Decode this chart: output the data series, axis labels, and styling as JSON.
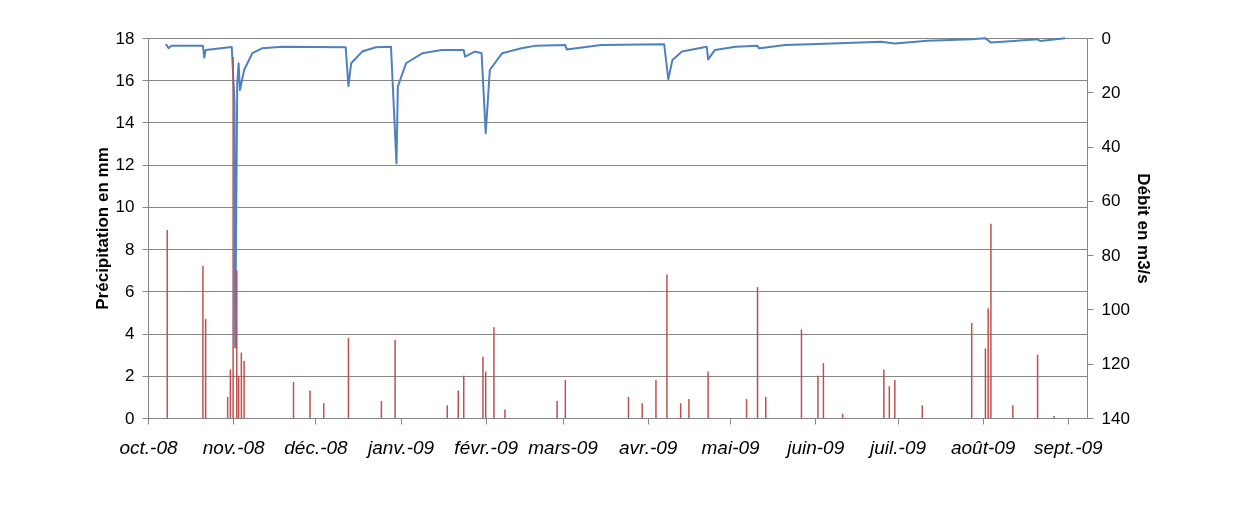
{
  "chart_data": {
    "type": "bar",
    "ylabel": "Précipitation en mm",
    "y2label": "Débit en m3/s",
    "xlim": [
      "2008-10-01",
      "2009-09-08"
    ],
    "xticks": [
      {
        "value": "2008-10-01",
        "label": "oct.-08"
      },
      {
        "value": "2008-11-01",
        "label": "nov.-08"
      },
      {
        "value": "2008-12-01",
        "label": "déc.-08"
      },
      {
        "value": "2009-01-01",
        "label": "janv.-09"
      },
      {
        "value": "2009-02-01",
        "label": "févr.-09"
      },
      {
        "value": "2009-03-01",
        "label": "mars-09"
      },
      {
        "value": "2009-04-01",
        "label": "avr.-09"
      },
      {
        "value": "2009-05-01",
        "label": "mai-09"
      },
      {
        "value": "2009-06-01",
        "label": "juin-09"
      },
      {
        "value": "2009-07-01",
        "label": "juil.-09"
      },
      {
        "value": "2009-08-01",
        "label": "août-09"
      },
      {
        "value": "2009-09-01",
        "label": "sept.-09"
      }
    ],
    "ylim": [
      0,
      18
    ],
    "yticks": [
      0,
      2,
      4,
      6,
      8,
      10,
      12,
      14,
      16,
      18
    ],
    "y2lim": [
      140,
      0
    ],
    "y2ticks": [
      0,
      20,
      40,
      60,
      80,
      100,
      120,
      140
    ],
    "grid": "y",
    "series": [
      {
        "color": "#c0504d",
        "x": [
          "2008-10-08",
          "2008-10-21",
          "2008-10-22",
          "2008-10-30",
          "2008-10-31",
          "2008-11-01",
          "2008-11-02T08:00",
          "2008-11-03",
          "2008-11-04",
          "2008-11-05",
          "2008-11-23",
          "2008-11-29",
          "2008-12-04",
          "2008-12-13",
          "2008-12-25",
          "2008-12-30",
          "2009-01-18",
          "2009-01-22",
          "2009-01-24",
          "2009-01-31",
          "2009-02-01",
          "2009-02-04",
          "2009-02-08",
          "2009-02-27",
          "2009-03-02",
          "2009-03-25",
          "2009-03-30",
          "2009-04-04",
          "2009-04-08",
          "2009-04-13",
          "2009-04-16",
          "2009-04-23",
          "2009-05-07",
          "2009-05-11",
          "2009-05-14",
          "2009-05-27",
          "2009-06-02",
          "2009-06-04",
          "2009-06-11",
          "2009-06-26",
          "2009-06-28",
          "2009-06-30",
          "2009-07-10",
          "2009-07-28",
          "2009-08-02",
          "2009-08-03",
          "2009-08-04",
          "2009-08-12",
          "2009-08-21",
          "2009-08-27"
        ],
        "values": [
          8.9,
          7.2,
          4.7,
          1.0,
          2.3,
          17.1,
          7.0,
          2.0,
          3.1,
          2.7,
          1.7,
          1.3,
          0.7,
          3.8,
          0.8,
          3.7,
          0.6,
          1.3,
          2.0,
          2.9,
          2.2,
          4.3,
          0.4,
          0.8,
          1.8,
          1.0,
          0.7,
          1.8,
          6.8,
          0.7,
          0.9,
          2.2,
          0.9,
          6.2,
          1.0,
          4.2,
          2.0,
          2.6,
          0.2,
          2.3,
          1.5,
          1.8,
          0.6,
          4.5,
          3.3,
          5.2,
          9.2,
          0.6,
          3.0,
          0.1
        ]
      },
      {
        "type": "line",
        "axis": "y2",
        "color": "#4f81bd",
        "x": [
          "2008-10-07T12:00",
          "2008-10-08T12:00",
          "2008-10-09T12:00",
          "2008-10-21T00:00",
          "2008-10-21T12:00",
          "2008-10-22T00:00",
          "2008-10-31T12:00",
          "2008-11-01T12:00",
          "2008-11-01T18:00",
          "2008-11-02T12:00",
          "2008-11-03T00:00",
          "2008-11-03T12:00",
          "2008-11-05T00:00",
          "2008-11-08T00:00",
          "2008-11-11T12:00",
          "2008-11-19T00:00",
          "2008-12-12T00:00",
          "2008-12-13T00:00",
          "2008-12-14T00:00",
          "2008-12-18T00:00",
          "2008-12-23T00:00",
          "2008-12-28T12:00",
          "2008-12-30T12:00",
          "2008-12-31T00:00",
          "2009-01-03T00:00",
          "2009-01-09T00:00",
          "2009-01-16T00:00",
          "2009-01-24T00:00",
          "2009-01-24T12:00",
          "2009-01-28T00:00",
          "2009-01-30T12:00",
          "2009-02-01T00:00",
          "2009-02-02T12:00",
          "2009-02-07T00:00",
          "2009-02-14T00:00",
          "2009-02-19T00:00",
          "2009-03-02T00:00",
          "2009-03-02T12:00",
          "2009-03-15T00:00",
          "2009-04-07T00:00",
          "2009-04-08T12:00",
          "2009-04-10T00:00",
          "2009-04-13T12:00",
          "2009-04-22T12:00",
          "2009-04-23T00:00",
          "2009-04-25T12:00",
          "2009-05-03T00:00",
          "2009-05-11T00:00",
          "2009-05-11T12:00",
          "2009-05-21T00:00",
          "2009-06-02T00:00",
          "2009-06-25T00:00",
          "2009-06-30T00:00",
          "2009-07-12T00:00",
          "2009-07-28T00:00",
          "2009-08-02T00:00",
          "2009-08-04T00:00",
          "2009-08-11T00:00",
          "2009-08-21T00:00",
          "2009-08-22T00:00",
          "2009-08-31T00:00"
        ],
        "values": [
          2.2,
          3.8,
          2.9,
          2.9,
          7.2,
          4.4,
          3.3,
          23.5,
          114,
          17,
          9.3,
          19.2,
          11.8,
          5.6,
          3.8,
          3.2,
          3.4,
          17.7,
          9.3,
          5.0,
          3.4,
          3.2,
          46.2,
          17.9,
          9.3,
          5.6,
          4.4,
          4.4,
          6.9,
          5.0,
          5.6,
          35.1,
          11.8,
          5.6,
          3.8,
          2.9,
          2.6,
          4.2,
          2.6,
          2.3,
          15.2,
          8.1,
          5.0,
          3.2,
          7.9,
          4.4,
          3.2,
          2.9,
          3.8,
          2.6,
          2.2,
          1.4,
          2.0,
          1.0,
          0.5,
          0.1,
          1.7,
          1.2,
          0.5,
          1.1,
          0.1
        ]
      }
    ]
  }
}
